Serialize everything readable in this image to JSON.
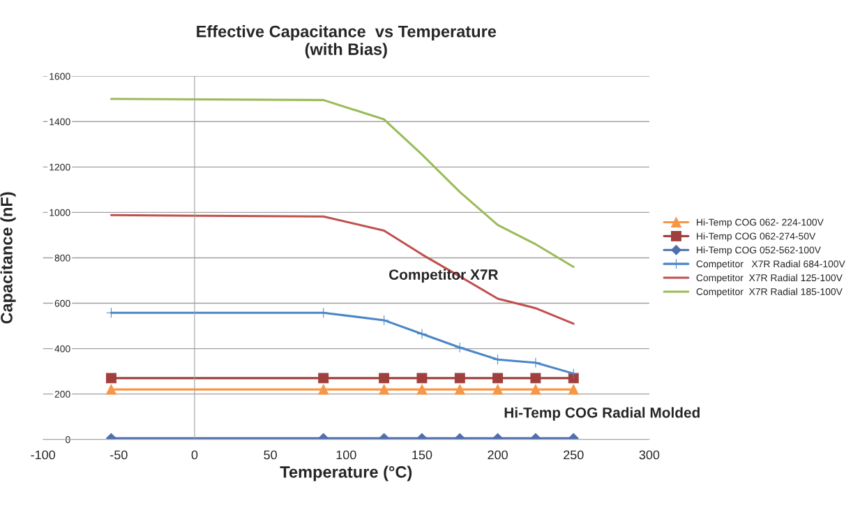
{
  "chart_data": {
    "type": "line",
    "title": "Effective Capacitance  vs Temperature\n(with Bias)",
    "xlabel": "Temperature (°C)",
    "ylabel": "Capacitance (nF)",
    "x": [
      -55,
      85,
      125,
      150,
      175,
      200,
      225,
      250
    ],
    "series": [
      {
        "name": "Hi-Temp COG 062- 224-100V",
        "color": "#f79646",
        "marker": "triangle",
        "values": [
          220,
          220,
          220,
          220,
          220,
          220,
          220,
          220
        ]
      },
      {
        "name": "Hi-Temp COG 062-274-50V",
        "color": "#a0403e",
        "marker": "square",
        "values": [
          270,
          270,
          270,
          270,
          270,
          270,
          270,
          270
        ]
      },
      {
        "name": "Hi-Temp COG 052-562-100V",
        "color": "#4f6fae",
        "marker": "diamond",
        "values": [
          5,
          5,
          5,
          5,
          5,
          5,
          5,
          5
        ]
      },
      {
        "name": "Competitor   X7R Radial 684-100V",
        "color": "#4a86c8",
        "marker": "cross",
        "values": [
          558,
          558,
          525,
          465,
          405,
          352,
          338,
          290
        ]
      },
      {
        "name": "Competitor  X7R Radial 125-100V",
        "color": "#c0504d",
        "marker": "none",
        "values": [
          988,
          982,
          920,
          815,
          718,
          620,
          578,
          510
        ]
      },
      {
        "name": "Competitor  X7R Radial 185-100V",
        "color": "#9bbb59",
        "marker": "none",
        "values": [
          1500,
          1495,
          1410,
          1255,
          1090,
          945,
          860,
          760
        ]
      }
    ],
    "xlim": [
      -100,
      300
    ],
    "xticks": [
      -100,
      -50,
      0,
      50,
      100,
      150,
      200,
      250,
      300
    ],
    "ylim": [
      0,
      1600
    ],
    "yticks": [
      0,
      200,
      400,
      600,
      800,
      1000,
      1200,
      1400,
      1600
    ],
    "grid": "y",
    "legend": "right",
    "annotations": [
      "Competitor X7R",
      "Hi-Temp COG Radial Molded"
    ]
  }
}
